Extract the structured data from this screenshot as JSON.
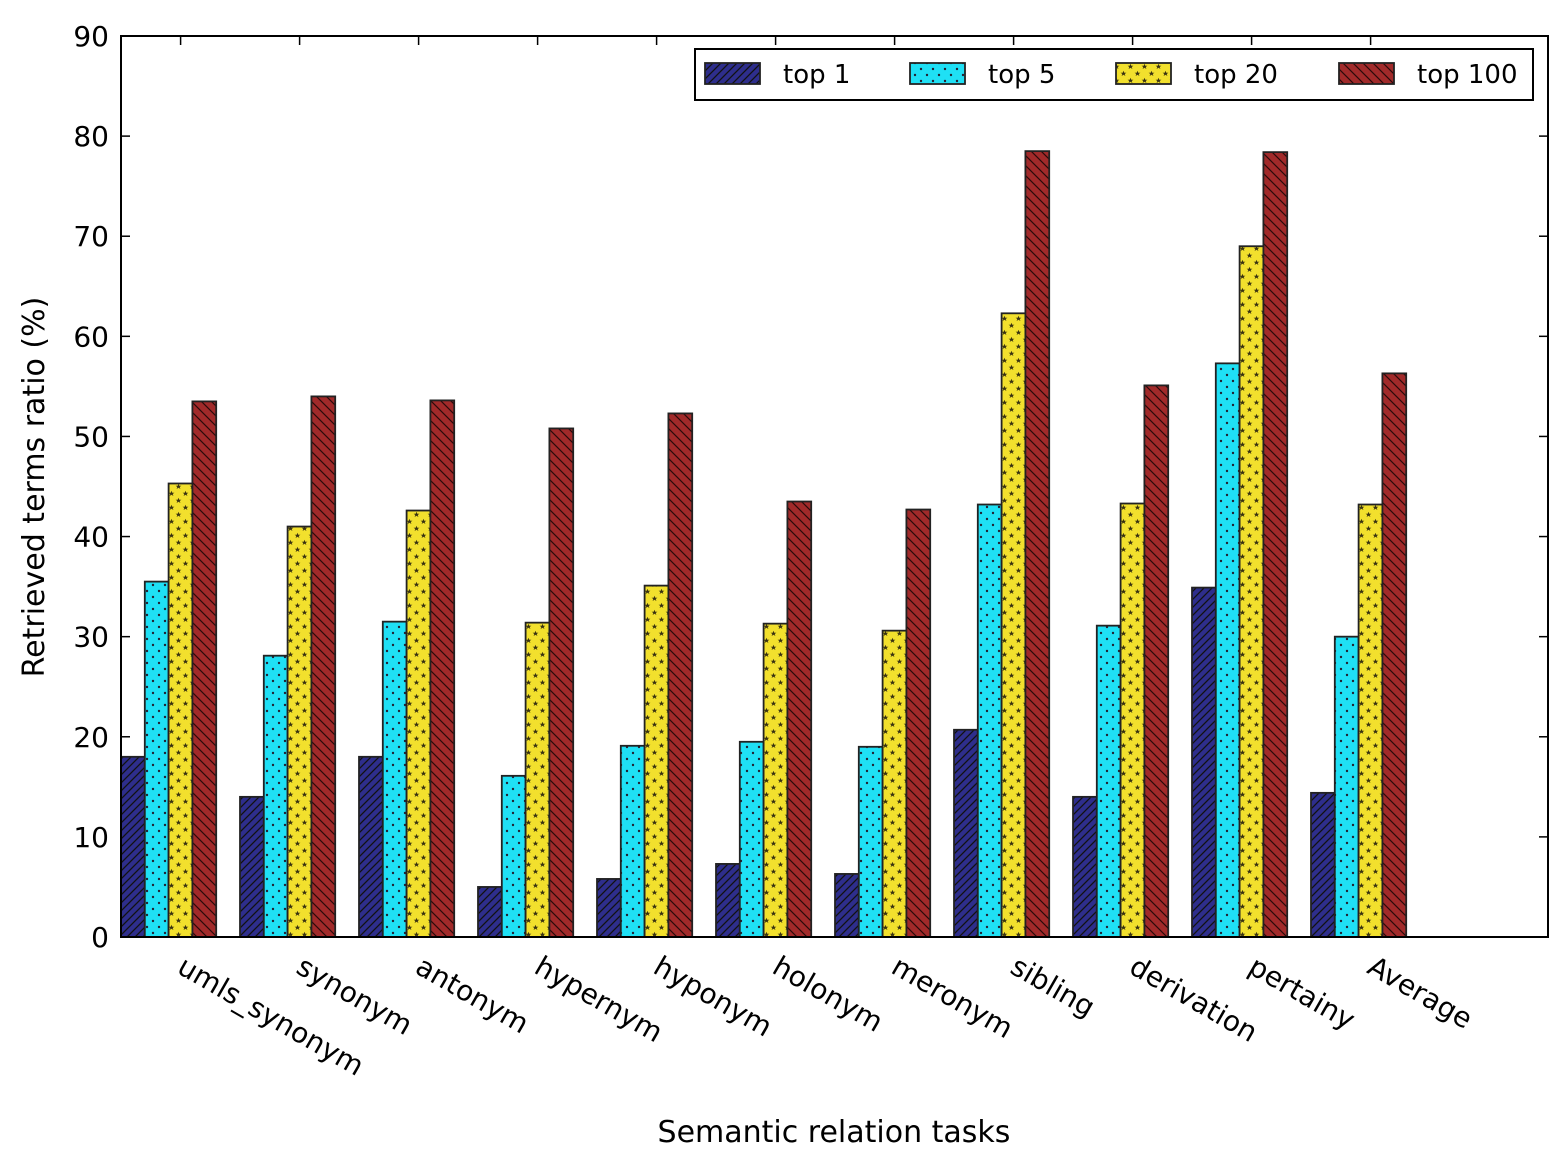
{
  "chart_data": {
    "type": "bar",
    "xlabel": "Semantic relation tasks",
    "ylabel": "Retrieved terms ratio (%)",
    "ylim": [
      0,
      90
    ],
    "yticks": [
      "0",
      "10",
      "20",
      "30",
      "40",
      "50",
      "60",
      "70",
      "80",
      "90"
    ],
    "legend_position": "top-right",
    "categories": [
      "umls_synonym",
      "synonym",
      "antonym",
      "hypernym",
      "hyponym",
      "holonym",
      "meronym",
      "sibling",
      "derivation",
      "pertainy",
      "Average"
    ],
    "series": [
      {
        "name": "top 1",
        "color": "#2e2e8c",
        "pattern": "hatch-diagonal",
        "values": [
          18.0,
          14.0,
          18.0,
          5.0,
          5.8,
          7.3,
          6.3,
          20.7,
          14.0,
          34.9,
          14.4
        ]
      },
      {
        "name": "top 5",
        "color": "#1fe0f5",
        "pattern": "dots",
        "values": [
          35.5,
          28.1,
          31.5,
          16.1,
          19.1,
          19.5,
          19.0,
          43.2,
          31.1,
          57.3,
          30.0
        ]
      },
      {
        "name": "top 20",
        "color": "#f2e02d",
        "pattern": "stars",
        "values": [
          45.3,
          41.0,
          42.6,
          31.4,
          35.1,
          31.3,
          30.6,
          62.3,
          43.3,
          69.0,
          43.2
        ]
      },
      {
        "name": "top 100",
        "color": "#a12a2a",
        "pattern": "hatch-backslash",
        "values": [
          53.5,
          54.0,
          53.6,
          50.8,
          52.3,
          43.5,
          42.7,
          78.5,
          55.1,
          78.4,
          56.3
        ]
      }
    ]
  }
}
